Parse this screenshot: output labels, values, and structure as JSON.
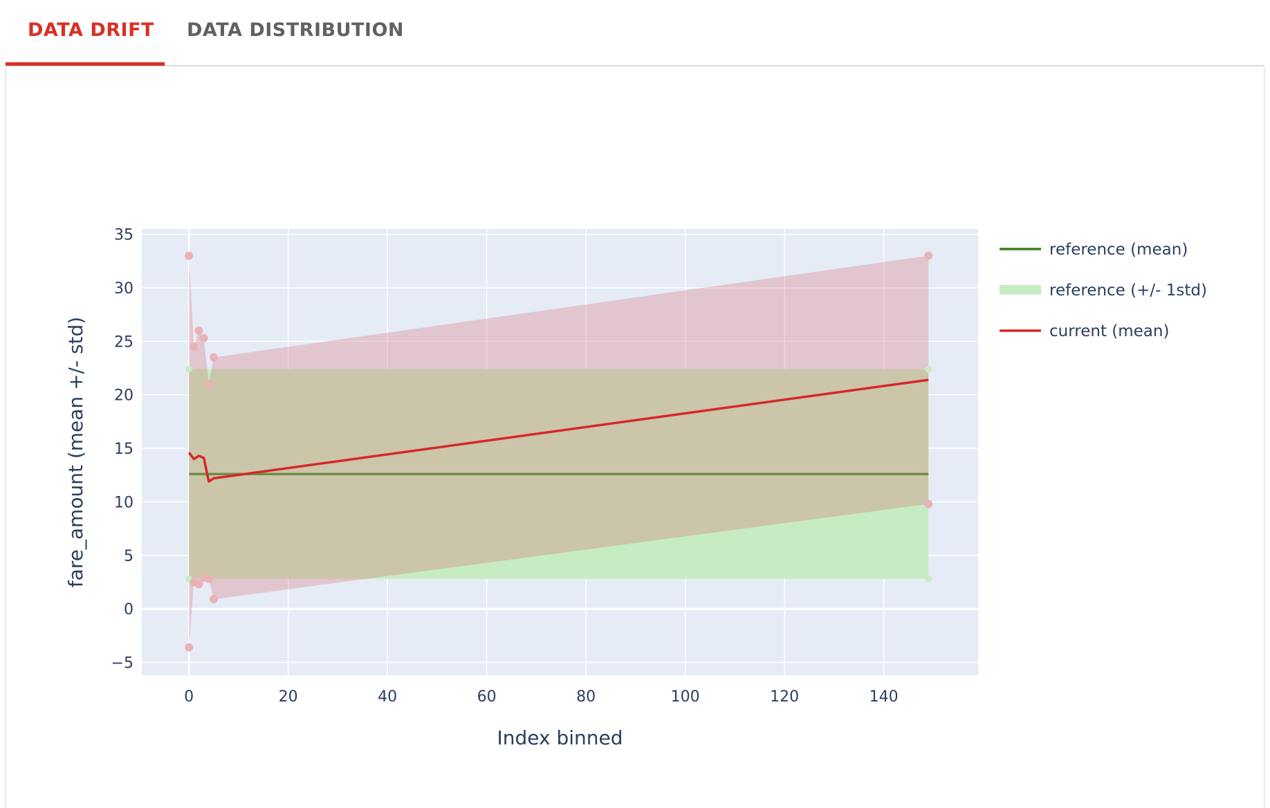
{
  "tabs": [
    {
      "label": "DATA DRIFT",
      "active": true
    },
    {
      "label": "DATA DISTRIBUTION",
      "active": false
    }
  ],
  "colors": {
    "accent": "#d93025",
    "reference_mean": "#3a7d1e",
    "reference_band": "#c7ecc3",
    "current_mean": "#d62728",
    "current_band": "#e8b4b8",
    "plot_bg": "#e5ecf6"
  },
  "chart_data": {
    "type": "line",
    "xlabel": "Index binned",
    "ylabel": "fare_amount (mean +/- std)",
    "xlim": [
      -9.5,
      159
    ],
    "ylim": [
      -6.2,
      35.5
    ],
    "x_ticks": [
      0,
      20,
      40,
      60,
      80,
      100,
      120,
      140
    ],
    "y_ticks": [
      -5,
      0,
      5,
      10,
      15,
      20,
      25,
      30,
      35
    ],
    "grid": true,
    "legend_position": "right",
    "series": [
      {
        "name": "reference (mean)",
        "kind": "line",
        "x": [
          0,
          149
        ],
        "y": [
          12.6,
          12.6
        ]
      },
      {
        "name": "reference (+/- 1std)",
        "kind": "band",
        "x": [
          0,
          149
        ],
        "upper": [
          22.4,
          22.4
        ],
        "lower": [
          2.8,
          2.8
        ]
      },
      {
        "name": "current (mean)",
        "kind": "line",
        "x": [
          0,
          1,
          2,
          3,
          4,
          5,
          149
        ],
        "y": [
          14.6,
          14.0,
          14.3,
          14.1,
          11.9,
          12.2,
          21.4
        ]
      },
      {
        "name": "current (+/- std)",
        "kind": "band",
        "x": [
          0,
          1,
          2,
          3,
          4,
          5,
          149
        ],
        "upper": [
          33.0,
          24.5,
          26.0,
          25.3,
          21.0,
          23.5,
          33.0
        ],
        "lower": [
          -3.6,
          2.5,
          2.3,
          2.9,
          2.8,
          0.9,
          9.8
        ]
      }
    ],
    "legend": [
      {
        "name": "reference (mean)",
        "symbol": "line"
      },
      {
        "name": "reference (+/- 1std)",
        "symbol": "band"
      },
      {
        "name": "current (mean)",
        "symbol": "line"
      }
    ]
  }
}
